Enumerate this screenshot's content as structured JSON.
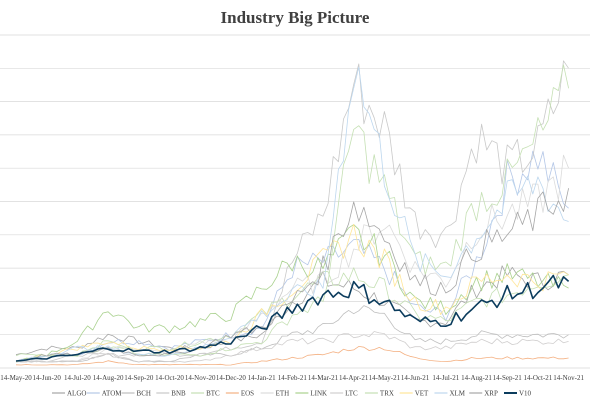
{
  "chart_data": {
    "type": "line",
    "title": "Industry Big Picture",
    "xlabel": "",
    "ylabel": "",
    "x_ticks": [
      "14-May-20",
      "14-Jun-20",
      "14-Jul-20",
      "14-Aug-20",
      "14-Sep-20",
      "14-Oct-20",
      "14-Nov-20",
      "14-Dec-20",
      "14-Jan-21",
      "14-Feb-21",
      "14-Mar-21",
      "14-Apr-21",
      "14-May-21",
      "14-Jun-21",
      "14-Jul-21",
      "14-Aug-21",
      "14-Sep-21",
      "14-Oct-21",
      "14-Nov-21"
    ],
    "y_gridlines": 10,
    "grid": true,
    "legend_position": "bottom",
    "series": [
      {
        "name": "ALGO",
        "color": "#a5a5a5",
        "width": 0.8,
        "values": [
          0.2,
          0.3,
          0.3,
          0.5,
          0.4,
          0.3,
          0.3,
          0.4,
          0.5,
          1.0,
          1.3,
          1.2,
          1.0,
          0.7,
          0.7,
          1.2,
          1.4,
          1.3,
          1.4
        ]
      },
      {
        "name": "ATOM",
        "color": "#b4c7e7",
        "width": 0.8,
        "values": [
          0.1,
          0.2,
          0.2,
          0.4,
          0.4,
          0.3,
          0.4,
          0.5,
          0.6,
          1.5,
          1.6,
          1.8,
          1.5,
          0.9,
          0.8,
          1.6,
          2.8,
          3.2,
          2.4
        ]
      },
      {
        "name": "BCH",
        "color": "#bfbfbf",
        "width": 0.8,
        "values": [
          0.1,
          0.1,
          0.1,
          0.2,
          0.1,
          0.1,
          0.2,
          0.2,
          0.3,
          0.5,
          0.6,
          0.9,
          0.8,
          0.4,
          0.4,
          0.5,
          0.5,
          0.5,
          0.5
        ]
      },
      {
        "name": "BNB",
        "color": "#c9c9c9",
        "width": 0.8,
        "values": [
          0.1,
          0.1,
          0.2,
          0.2,
          0.2,
          0.2,
          0.2,
          0.3,
          0.4,
          1.6,
          2.3,
          4.3,
          3.6,
          2.2,
          2.0,
          3.5,
          3.0,
          3.3,
          4.5
        ]
      },
      {
        "name": "BTC",
        "color": "#c5e0b4",
        "width": 0.8,
        "values": [
          0.2,
          0.2,
          0.2,
          0.3,
          0.3,
          0.3,
          0.4,
          0.5,
          0.8,
          1.1,
          1.3,
          1.4,
          1.2,
          0.8,
          0.7,
          1.0,
          1.1,
          1.3,
          1.4
        ]
      },
      {
        "name": "EOS",
        "color": "#f4b183",
        "width": 0.8,
        "values": [
          0.05,
          0.05,
          0.05,
          0.1,
          0.05,
          0.05,
          0.05,
          0.05,
          0.1,
          0.15,
          0.2,
          0.3,
          0.3,
          0.15,
          0.1,
          0.15,
          0.15,
          0.15,
          0.15
        ]
      },
      {
        "name": "ETH",
        "color": "#dbdbdb",
        "width": 0.8,
        "values": [
          0.1,
          0.1,
          0.1,
          0.3,
          0.3,
          0.2,
          0.4,
          0.4,
          0.8,
          1.2,
          1.3,
          1.8,
          2.2,
          1.5,
          1.3,
          2.1,
          2.3,
          2.5,
          3.0
        ]
      },
      {
        "name": "LINK",
        "color": "#a9d18e",
        "width": 0.8,
        "values": [
          0.1,
          0.2,
          0.4,
          0.9,
          0.6,
          0.6,
          0.7,
          0.8,
          1.2,
          1.6,
          1.5,
          2.0,
          1.7,
          1.0,
          0.9,
          1.3,
          1.4,
          1.3,
          1.2
        ]
      },
      {
        "name": "LTC",
        "color": "#d0cece",
        "width": 0.8,
        "values": [
          0.1,
          0.1,
          0.1,
          0.2,
          0.1,
          0.1,
          0.1,
          0.2,
          0.3,
          0.4,
          0.4,
          0.5,
          0.5,
          0.3,
          0.3,
          0.4,
          0.4,
          0.4,
          0.4
        ]
      },
      {
        "name": "TRX",
        "color": "#c5e0b4",
        "width": 0.8,
        "values": [
          0.1,
          0.2,
          0.2,
          0.4,
          0.2,
          0.2,
          0.2,
          0.3,
          0.4,
          0.8,
          1.0,
          3.6,
          2.7,
          1.6,
          1.5,
          2.5,
          2.8,
          3.4,
          4.2
        ]
      },
      {
        "name": "VET",
        "color": "#ffe699",
        "width": 0.8,
        "values": [
          0.1,
          0.2,
          0.3,
          0.4,
          0.3,
          0.3,
          0.3,
          0.4,
          0.8,
          1.2,
          1.6,
          2.0,
          1.6,
          1.0,
          0.9,
          1.3,
          1.4,
          1.3,
          1.4
        ]
      },
      {
        "name": "XLM",
        "color": "#bdd7ee",
        "width": 0.8,
        "values": [
          0.1,
          0.2,
          0.3,
          0.3,
          0.2,
          0.2,
          0.3,
          0.5,
          0.8,
          1.1,
          1.2,
          4.6,
          3.0,
          1.6,
          1.4,
          2.0,
          2.5,
          2.8,
          2.2
        ]
      },
      {
        "name": "XRP",
        "color": "#a6a6a6",
        "width": 0.8,
        "values": [
          0.1,
          0.2,
          0.2,
          0.3,
          0.2,
          0.2,
          0.3,
          0.5,
          0.6,
          1.0,
          1.5,
          2.5,
          2.0,
          1.3,
          1.2,
          1.8,
          2.0,
          2.3,
          2.7
        ]
      },
      {
        "name": "V10",
        "color": "#0b3c5d",
        "width": 1.6,
        "values": [
          0.1,
          0.15,
          0.2,
          0.3,
          0.25,
          0.25,
          0.3,
          0.4,
          0.6,
          0.9,
          1.1,
          1.2,
          1.0,
          0.7,
          0.7,
          0.9,
          1.1,
          1.2,
          1.3
        ]
      }
    ]
  }
}
